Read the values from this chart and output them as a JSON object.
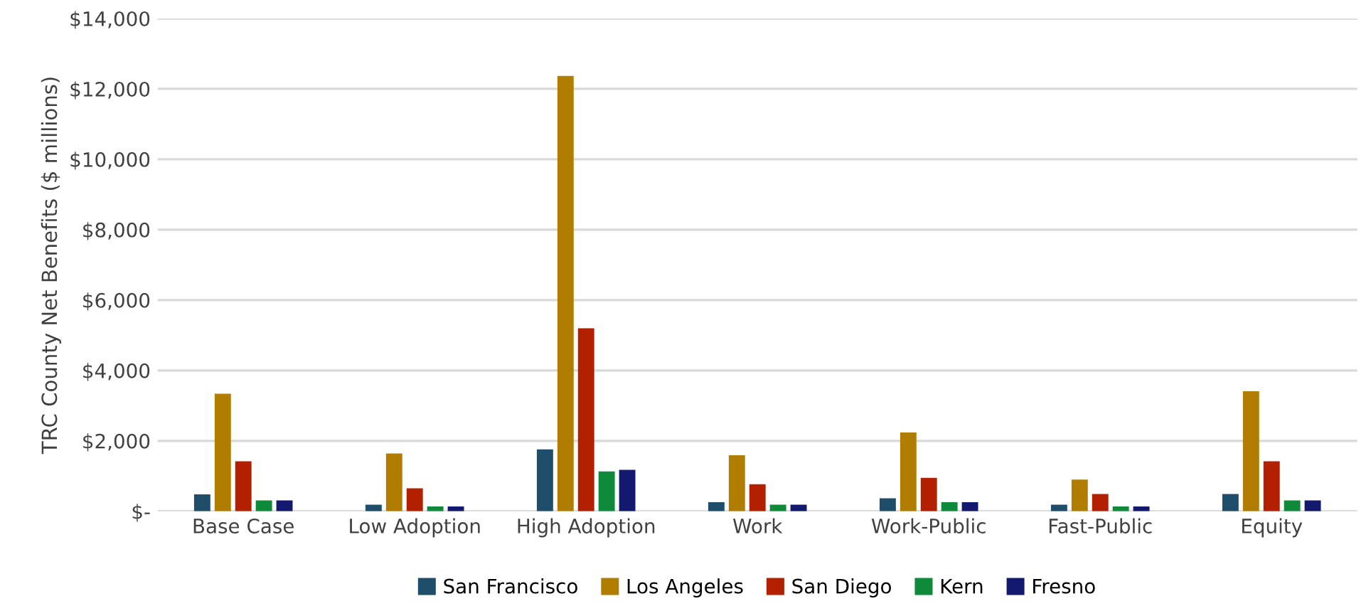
{
  "chart_data": {
    "type": "bar",
    "ylabel": "TRC County Net Benefits ($ millions)",
    "categories": [
      "Base Case",
      "Low Adoption",
      "High Adoption",
      "Work",
      "Work-Public",
      "Fast-Public",
      "Equity"
    ],
    "series": [
      {
        "name": "San Francisco",
        "color": "#1f4e6b",
        "values": [
          480,
          190,
          1760,
          260,
          370,
          190,
          490
        ]
      },
      {
        "name": "Los Angeles",
        "color": "#b07d00",
        "values": [
          3340,
          1640,
          12370,
          1590,
          2240,
          900,
          3410
        ]
      },
      {
        "name": "San Diego",
        "color": "#b22000",
        "values": [
          1420,
          650,
          5200,
          770,
          950,
          490,
          1420
        ]
      },
      {
        "name": "Kern",
        "color": "#0e8a3a",
        "values": [
          310,
          135,
          1130,
          190,
          260,
          135,
          310
        ]
      },
      {
        "name": "Fresno",
        "color": "#13196e",
        "values": [
          310,
          135,
          1180,
          190,
          260,
          135,
          310
        ]
      }
    ],
    "ylim": [
      0,
      14000
    ],
    "yticks": [
      {
        "value": 0,
        "label": "$-"
      },
      {
        "value": 2000,
        "label": "$2,000"
      },
      {
        "value": 4000,
        "label": "$4,000"
      },
      {
        "value": 6000,
        "label": "$6,000"
      },
      {
        "value": 8000,
        "label": "$8,000"
      },
      {
        "value": 10000,
        "label": "$10,000"
      },
      {
        "value": 12000,
        "label": "$12,000"
      },
      {
        "value": 14000,
        "label": "$14,000"
      }
    ],
    "grid": "y",
    "legend": "bottom"
  }
}
